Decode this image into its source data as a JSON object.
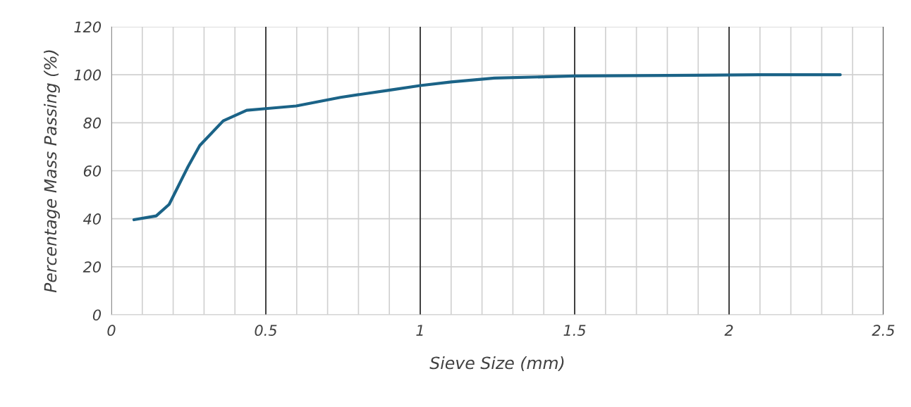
{
  "chart_data": {
    "type": "line",
    "xlabel": "Sieve Size (mm)",
    "ylabel": "Percentage Mass Passing (%)",
    "series": [
      {
        "color": "#1b6387",
        "x": [
          0.073,
          0.145,
          0.187,
          0.248,
          0.286,
          0.362,
          0.438,
          0.5,
          0.598,
          0.742,
          0.895,
          1.0,
          1.1,
          1.24,
          1.5,
          1.8,
          2.1,
          2.36
        ],
        "values": [
          39.6,
          41.2,
          46,
          61.7,
          70.5,
          80.8,
          85.2,
          85.9,
          87,
          90.6,
          93.5,
          95.5,
          97,
          98.6,
          99.5,
          99.7,
          100,
          100
        ]
      }
    ],
    "xlim": [
      0,
      2.5
    ],
    "xticks": [
      0,
      0.5,
      1,
      1.5,
      2,
      2.5
    ],
    "ylim": [
      0,
      120
    ],
    "yticks": [
      0,
      20,
      40,
      60,
      80,
      100,
      120
    ],
    "grid": true,
    "marker": "none",
    "line_style": "solid"
  }
}
